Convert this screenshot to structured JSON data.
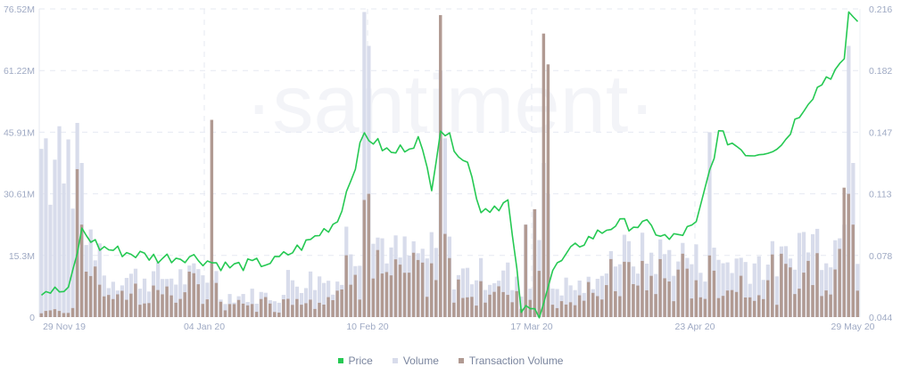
{
  "chart_data": {
    "type": "bar+line",
    "title": "",
    "watermark": "·santiment·",
    "x_axis": {
      "tick_labels": [
        "29 Nov 19",
        "04 Jan 20",
        "10 Feb 20",
        "17 Mar 20",
        "23 Apr 20",
        "29 May 20"
      ],
      "start": "29 Nov 19",
      "end": "29 May 20"
    },
    "y_axis_left": {
      "label": "Volume",
      "ticks": [
        "0",
        "15.3M",
        "30.61M",
        "45.91M",
        "61.22M",
        "76.52M"
      ],
      "range": [
        0,
        76520000
      ]
    },
    "y_axis_right": {
      "label": "Price",
      "ticks": [
        "0.044",
        "0.078",
        "0.113",
        "0.147",
        "0.182",
        "0.216"
      ],
      "range": [
        0.044,
        0.216
      ]
    },
    "grid": true,
    "legend_position": "bottom-center",
    "series": [
      {
        "name": "Price",
        "type": "line",
        "axis": "right",
        "color": "#26c953",
        "keypoints": [
          {
            "date": "29 Nov 19",
            "value": 0.059
          },
          {
            "date": "05 Dec 19",
            "value": 0.058
          },
          {
            "date": "08 Dec 19",
            "value": 0.092
          },
          {
            "date": "12 Dec 19",
            "value": 0.083
          },
          {
            "date": "18 Dec 19",
            "value": 0.08
          },
          {
            "date": "25 Dec 19",
            "value": 0.077
          },
          {
            "date": "01 Jan 20",
            "value": 0.078
          },
          {
            "date": "10 Jan 20",
            "value": 0.072
          },
          {
            "date": "20 Jan 20",
            "value": 0.075
          },
          {
            "date": "27 Jan 20",
            "value": 0.085
          },
          {
            "date": "03 Feb 20",
            "value": 0.098
          },
          {
            "date": "09 Feb 20",
            "value": 0.146
          },
          {
            "date": "15 Feb 20",
            "value": 0.135
          },
          {
            "date": "21 Feb 20",
            "value": 0.143
          },
          {
            "date": "24 Feb 20",
            "value": 0.118
          },
          {
            "date": "26 Feb 20",
            "value": 0.15
          },
          {
            "date": "03 Mar 20",
            "value": 0.13
          },
          {
            "date": "06 Mar 20",
            "value": 0.104
          },
          {
            "date": "12 Mar 20",
            "value": 0.108
          },
          {
            "date": "15 Mar 20",
            "value": 0.048
          },
          {
            "date": "19 Mar 20",
            "value": 0.047
          },
          {
            "date": "22 Mar 20",
            "value": 0.07
          },
          {
            "date": "28 Mar 20",
            "value": 0.085
          },
          {
            "date": "05 Apr 20",
            "value": 0.096
          },
          {
            "date": "12 Apr 20",
            "value": 0.095
          },
          {
            "date": "17 Apr 20",
            "value": 0.087
          },
          {
            "date": "23 Apr 20",
            "value": 0.095
          },
          {
            "date": "28 Apr 20",
            "value": 0.146
          },
          {
            "date": "05 May 20",
            "value": 0.135
          },
          {
            "date": "12 May 20",
            "value": 0.14
          },
          {
            "date": "17 May 20",
            "value": 0.162
          },
          {
            "date": "22 May 20",
            "value": 0.178
          },
          {
            "date": "26 May 20",
            "value": 0.185
          },
          {
            "date": "27 May 20",
            "value": 0.215
          },
          {
            "date": "29 May 20",
            "value": 0.208
          }
        ]
      },
      {
        "name": "Volume",
        "type": "bar",
        "axis": "left",
        "color": "#d8dceb",
        "notable_values": [
          {
            "date": "~02 Dec 19",
            "value": 44000000
          },
          {
            "date": "~07 Dec 19",
            "value": 48000000
          },
          {
            "date": "~09 Feb 20",
            "value": 76000000
          },
          {
            "date": "~26 Feb 20",
            "value": 61000000
          },
          {
            "date": "~17 Mar 20",
            "value": 27000000
          },
          {
            "date": "~27 Apr 20",
            "value": 46000000
          },
          {
            "date": "~27 May 20",
            "value": 68000000
          }
        ]
      },
      {
        "name": "Transaction Volume",
        "type": "bar",
        "axis": "left",
        "color": "#b19a92",
        "notable_values": [
          {
            "date": "~07 Dec 19",
            "value": 37000000
          },
          {
            "date": "~06 Jan 20",
            "value": 49000000
          },
          {
            "date": "~09 Feb 20",
            "value": 31000000
          },
          {
            "date": "~26 Feb 20",
            "value": 75500000
          },
          {
            "date": "~18 Mar 20",
            "value": 70000000
          },
          {
            "date": "~19 Mar 20",
            "value": 63000000
          },
          {
            "date": "~26 May 20",
            "value": 31000000
          }
        ]
      }
    ]
  },
  "legend": {
    "items": [
      {
        "label": "Price",
        "color": "#26c953"
      },
      {
        "label": "Volume",
        "color": "#d8dceb"
      },
      {
        "label": "Transaction Volume",
        "color": "#b19a92"
      }
    ]
  }
}
